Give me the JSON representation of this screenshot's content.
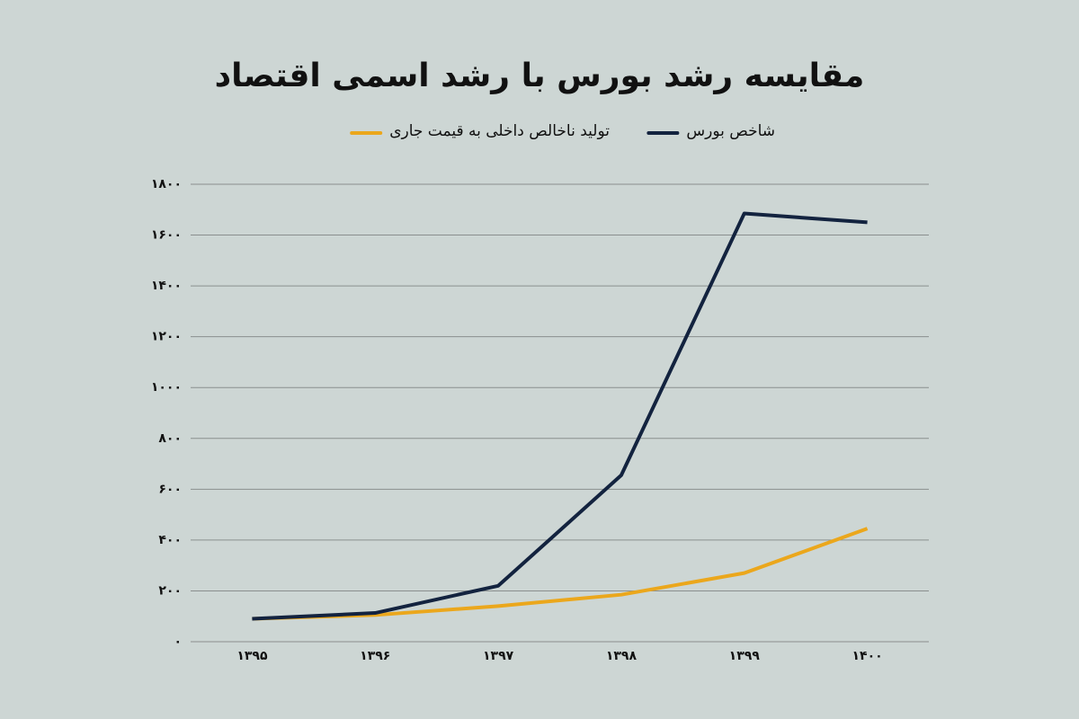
{
  "chart_data": {
    "type": "line",
    "title": "مقایسه رشد بورس با رشد اسمی اقتصاد",
    "categories": [
      "۱۳۹۵",
      "۱۳۹۶",
      "۱۳۹۷",
      "۱۳۹۸",
      "۱۳۹۹",
      "۱۴۰۰"
    ],
    "series": [
      {
        "name": "شاخص بورس",
        "color": "#13233f",
        "values": [
          90,
          113,
          220,
          655,
          1685,
          1650
        ]
      },
      {
        "name": "تولید ناخالص داخلی به قیمت جاری",
        "color": "#eba71c",
        "values": [
          90,
          105,
          140,
          185,
          270,
          445
        ]
      }
    ],
    "ylim": [
      0,
      1800
    ],
    "yticks": [
      {
        "value": 0,
        "label": "۰"
      },
      {
        "value": 200,
        "label": "۲۰۰"
      },
      {
        "value": 400,
        "label": "۴۰۰"
      },
      {
        "value": 600,
        "label": "۶۰۰"
      },
      {
        "value": 800,
        "label": "۸۰۰"
      },
      {
        "value": 1000,
        "label": "۱۰۰۰"
      },
      {
        "value": 1200,
        "label": "۱۲۰۰"
      },
      {
        "value": 1400,
        "label": "۱۴۰۰"
      },
      {
        "value": 1600,
        "label": "۱۶۰۰"
      },
      {
        "value": 1800,
        "label": "۱۸۰۰"
      }
    ],
    "grid": true
  }
}
